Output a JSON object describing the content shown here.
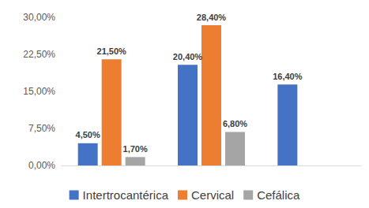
{
  "chart_data": {
    "type": "bar",
    "categories": [
      null,
      null,
      null
    ],
    "series": [
      {
        "name": "Intertrocantérica",
        "color": "#4472c4",
        "values": [
          4.5,
          20.4,
          16.4
        ],
        "value_labels": [
          "4,50%",
          "20,40%",
          "16,40%"
        ]
      },
      {
        "name": "Cervical",
        "color": "#ed7d31",
        "values": [
          21.5,
          28.4,
          null
        ],
        "value_labels": [
          "21,50%",
          "28,40%",
          null
        ]
      },
      {
        "name": "Cefálica",
        "color": "#a5a5a5",
        "values": [
          1.7,
          6.8,
          null
        ],
        "value_labels": [
          "1,70%",
          "6,80%",
          null
        ]
      }
    ],
    "ylim": [
      0,
      30
    ],
    "yticks": [
      {
        "value": 0,
        "label": "0,00%"
      },
      {
        "value": 7.5,
        "label": "7,50%"
      },
      {
        "value": 15,
        "label": "15,00%"
      },
      {
        "value": 22.5,
        "label": "22,50%"
      },
      {
        "value": 30,
        "label": "30,00%"
      }
    ],
    "grid": false,
    "legend": "bottom",
    "data_labels": true,
    "tick_labels": "y"
  }
}
